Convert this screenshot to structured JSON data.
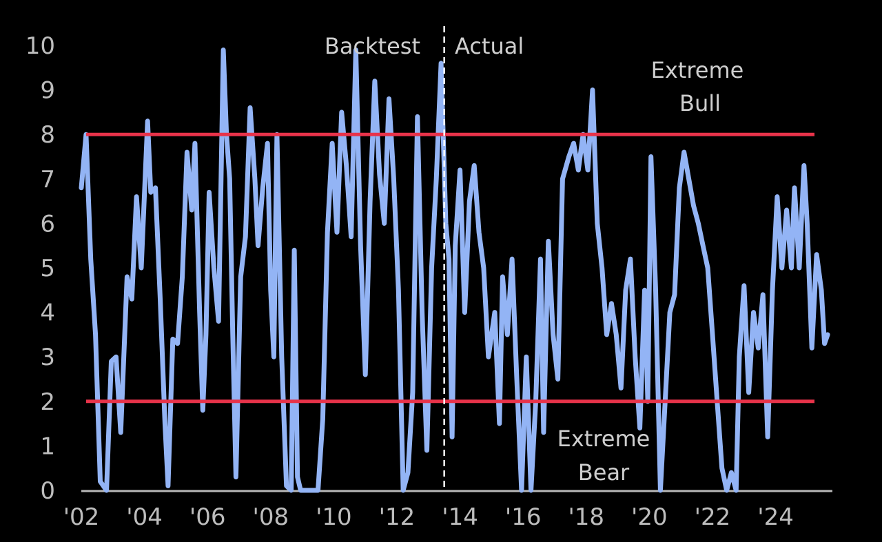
{
  "chart_data": {
    "type": "line",
    "title": "",
    "xlabel": "",
    "ylabel": "",
    "xlim": [
      2002.0,
      2025.8
    ],
    "ylim": [
      0,
      10
    ],
    "x_ticks": [
      {
        "value": 2002,
        "label": "'02"
      },
      {
        "value": 2004,
        "label": "'04"
      },
      {
        "value": 2006,
        "label": "'06"
      },
      {
        "value": 2008,
        "label": "'08"
      },
      {
        "value": 2010,
        "label": "'10"
      },
      {
        "value": 2012,
        "label": "'12"
      },
      {
        "value": 2014,
        "label": "'14"
      },
      {
        "value": 2016,
        "label": "'16"
      },
      {
        "value": 2018,
        "label": "'18"
      },
      {
        "value": 2020,
        "label": "'20"
      },
      {
        "value": 2022,
        "label": "'22"
      },
      {
        "value": 2024,
        "label": "'24"
      }
    ],
    "y_ticks": [
      0,
      1,
      2,
      3,
      4,
      5,
      6,
      7,
      8,
      9,
      10
    ],
    "thresholds": [
      {
        "value": 8,
        "color": "#e8334a"
      },
      {
        "value": 2,
        "color": "#e8334a"
      }
    ],
    "divider": {
      "x": 2013.5
    },
    "annotations": {
      "backtest": "Backtest",
      "actual": "Actual",
      "extreme_bull_line1": "Extreme",
      "extreme_bull_line2": "Bull",
      "extreme_bear_line1": "Extreme",
      "extreme_bear_line2": "Bear"
    },
    "series": [
      {
        "color": "#93b4f5",
        "points": [
          [
            2002.0,
            6.8
          ],
          [
            2002.15,
            8.0
          ],
          [
            2002.3,
            5.2
          ],
          [
            2002.45,
            3.5
          ],
          [
            2002.6,
            0.2
          ],
          [
            2002.8,
            0.0
          ],
          [
            2002.95,
            2.9
          ],
          [
            2003.1,
            3.0
          ],
          [
            2003.25,
            1.3
          ],
          [
            2003.45,
            4.8
          ],
          [
            2003.6,
            4.3
          ],
          [
            2003.75,
            6.6
          ],
          [
            2003.9,
            5.0
          ],
          [
            2004.1,
            8.3
          ],
          [
            2004.2,
            6.7
          ],
          [
            2004.35,
            6.8
          ],
          [
            2004.5,
            4.3
          ],
          [
            2004.65,
            1.5
          ],
          [
            2004.75,
            0.1
          ],
          [
            2004.9,
            3.4
          ],
          [
            2005.05,
            3.3
          ],
          [
            2005.2,
            4.8
          ],
          [
            2005.35,
            7.6
          ],
          [
            2005.5,
            6.3
          ],
          [
            2005.6,
            7.8
          ],
          [
            2005.75,
            4.0
          ],
          [
            2005.85,
            1.8
          ],
          [
            2005.95,
            3.5
          ],
          [
            2006.05,
            6.7
          ],
          [
            2006.2,
            5.0
          ],
          [
            2006.35,
            3.8
          ],
          [
            2006.5,
            9.9
          ],
          [
            2006.6,
            8.0
          ],
          [
            2006.7,
            7.0
          ],
          [
            2006.8,
            3.5
          ],
          [
            2006.9,
            0.3
          ],
          [
            2007.05,
            4.8
          ],
          [
            2007.2,
            5.7
          ],
          [
            2007.35,
            8.6
          ],
          [
            2007.5,
            7.0
          ],
          [
            2007.6,
            5.5
          ],
          [
            2007.75,
            6.8
          ],
          [
            2007.9,
            7.8
          ],
          [
            2008.0,
            4.5
          ],
          [
            2008.1,
            3.0
          ],
          [
            2008.2,
            8.0
          ],
          [
            2008.35,
            3.0
          ],
          [
            2008.5,
            0.1
          ],
          [
            2008.65,
            0.0
          ],
          [
            2008.75,
            5.4
          ],
          [
            2008.85,
            0.3
          ],
          [
            2008.95,
            0.0
          ],
          [
            2009.3,
            0.0
          ],
          [
            2009.5,
            0.0
          ],
          [
            2009.65,
            1.6
          ],
          [
            2009.8,
            5.8
          ],
          [
            2009.95,
            7.8
          ],
          [
            2010.1,
            5.8
          ],
          [
            2010.25,
            8.5
          ],
          [
            2010.4,
            7.3
          ],
          [
            2010.55,
            5.7
          ],
          [
            2010.7,
            9.9
          ],
          [
            2010.85,
            5.5
          ],
          [
            2011.0,
            2.6
          ],
          [
            2011.15,
            6.5
          ],
          [
            2011.3,
            9.2
          ],
          [
            2011.45,
            7.1
          ],
          [
            2011.6,
            6.0
          ],
          [
            2011.75,
            8.8
          ],
          [
            2011.9,
            7.0
          ],
          [
            2012.05,
            4.5
          ],
          [
            2012.2,
            0.0
          ],
          [
            2012.35,
            0.4
          ],
          [
            2012.5,
            2.2
          ],
          [
            2012.65,
            8.4
          ],
          [
            2012.8,
            4.0
          ],
          [
            2012.95,
            0.9
          ],
          [
            2013.1,
            5.0
          ],
          [
            2013.25,
            7.0
          ],
          [
            2013.4,
            9.6
          ],
          [
            2013.55,
            6.0
          ],
          [
            2013.65,
            5.2
          ],
          [
            2013.75,
            1.2
          ],
          [
            2013.85,
            5.5
          ],
          [
            2014.0,
            7.2
          ],
          [
            2014.15,
            4.0
          ],
          [
            2014.3,
            6.5
          ],
          [
            2014.45,
            7.3
          ],
          [
            2014.6,
            5.8
          ],
          [
            2014.75,
            5.0
          ],
          [
            2014.9,
            3.0
          ],
          [
            2015.1,
            4.0
          ],
          [
            2015.25,
            1.5
          ],
          [
            2015.35,
            4.8
          ],
          [
            2015.5,
            3.5
          ],
          [
            2015.65,
            5.2
          ],
          [
            2015.8,
            2.5
          ],
          [
            2015.95,
            0.0
          ],
          [
            2016.1,
            3.0
          ],
          [
            2016.25,
            0.0
          ],
          [
            2016.4,
            2.0
          ],
          [
            2016.55,
            5.2
          ],
          [
            2016.65,
            1.3
          ],
          [
            2016.8,
            5.6
          ],
          [
            2016.95,
            3.5
          ],
          [
            2017.1,
            2.5
          ],
          [
            2017.25,
            7.0
          ],
          [
            2017.45,
            7.5
          ],
          [
            2017.6,
            7.8
          ],
          [
            2017.75,
            7.2
          ],
          [
            2017.9,
            8.0
          ],
          [
            2018.05,
            7.2
          ],
          [
            2018.2,
            9.0
          ],
          [
            2018.35,
            6.0
          ],
          [
            2018.5,
            5.0
          ],
          [
            2018.65,
            3.5
          ],
          [
            2018.8,
            4.2
          ],
          [
            2018.95,
            3.5
          ],
          [
            2019.1,
            2.3
          ],
          [
            2019.25,
            4.5
          ],
          [
            2019.4,
            5.2
          ],
          [
            2019.55,
            3.0
          ],
          [
            2019.7,
            1.4
          ],
          [
            2019.85,
            4.5
          ],
          [
            2019.95,
            2.0
          ],
          [
            2020.05,
            7.5
          ],
          [
            2020.2,
            4.5
          ],
          [
            2020.35,
            0.0
          ],
          [
            2020.5,
            2.0
          ],
          [
            2020.65,
            4.0
          ],
          [
            2020.8,
            4.4
          ],
          [
            2020.95,
            6.8
          ],
          [
            2021.1,
            7.6
          ],
          [
            2021.25,
            7.0
          ],
          [
            2021.4,
            6.4
          ],
          [
            2021.55,
            6.0
          ],
          [
            2021.7,
            5.5
          ],
          [
            2021.85,
            5.0
          ],
          [
            2022.0,
            3.5
          ],
          [
            2022.15,
            2.0
          ],
          [
            2022.3,
            0.5
          ],
          [
            2022.45,
            0.0
          ],
          [
            2022.6,
            0.4
          ],
          [
            2022.75,
            0.0
          ],
          [
            2022.85,
            3.0
          ],
          [
            2023.0,
            4.6
          ],
          [
            2023.15,
            2.2
          ],
          [
            2023.3,
            4.0
          ],
          [
            2023.45,
            3.2
          ],
          [
            2023.6,
            4.4
          ],
          [
            2023.75,
            1.2
          ],
          [
            2023.9,
            4.5
          ],
          [
            2024.05,
            6.6
          ],
          [
            2024.2,
            5.0
          ],
          [
            2024.35,
            6.3
          ],
          [
            2024.5,
            5.0
          ],
          [
            2024.6,
            6.8
          ],
          [
            2024.75,
            5.0
          ],
          [
            2024.9,
            7.3
          ],
          [
            2025.0,
            6.0
          ],
          [
            2025.15,
            3.2
          ],
          [
            2025.3,
            5.3
          ],
          [
            2025.45,
            4.5
          ],
          [
            2025.55,
            3.3
          ],
          [
            2025.65,
            3.5
          ]
        ]
      }
    ]
  }
}
